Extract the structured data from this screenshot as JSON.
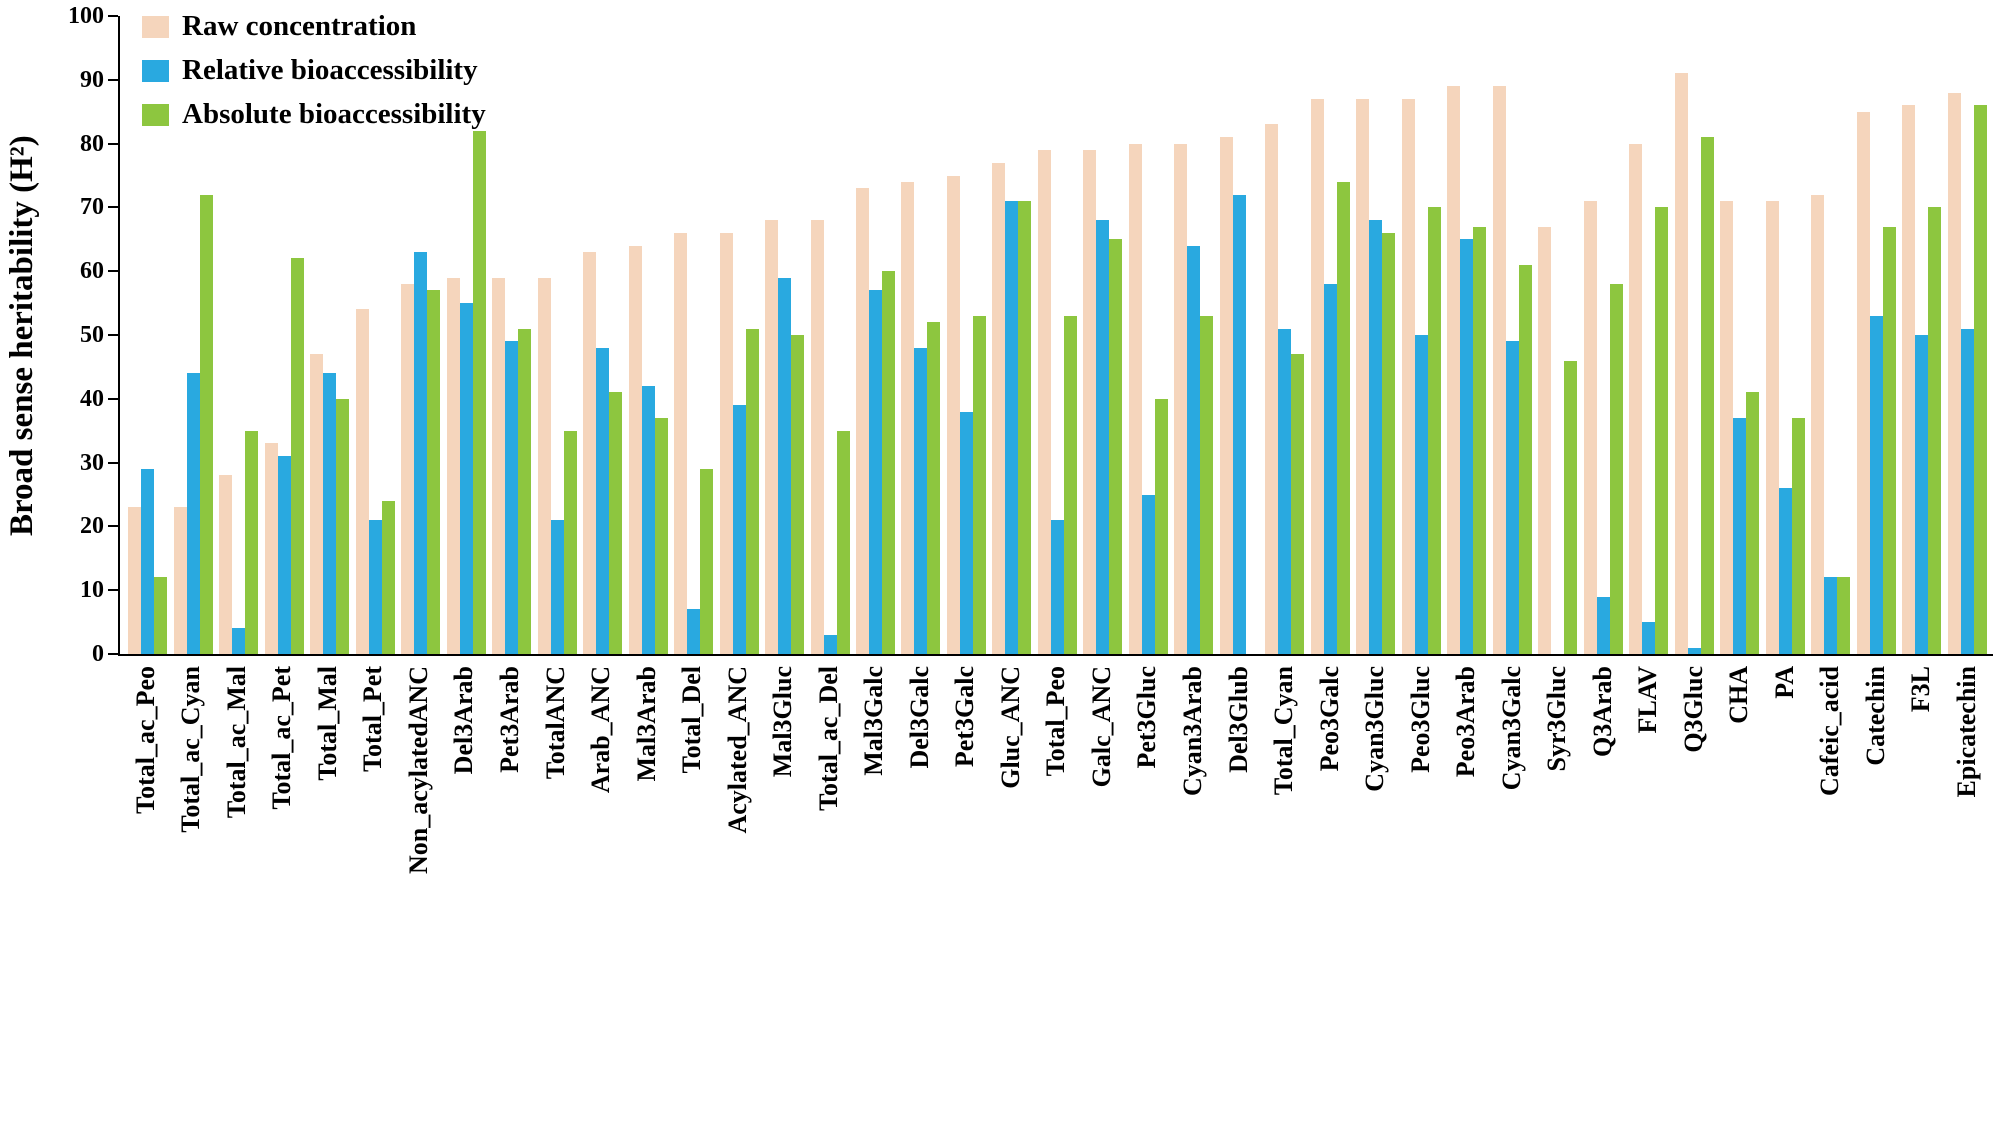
{
  "chart_data": {
    "type": "bar",
    "title": "",
    "xlabel": "",
    "ylabel": "Broad sense heritability (H²)",
    "ylim": [
      0,
      100
    ],
    "ytick_step": 10,
    "grid": false,
    "legend_position": "top-left",
    "categories": [
      "Total_ac_Peo",
      "Total_ac_Cyan",
      "Total_ac_Mal",
      "Total_ac_Pet",
      "Total_Mal",
      "Total_Pet",
      "Non_acylatedANC",
      "Del3Arab",
      "Pet3Arab",
      "TotalANC",
      "Arab_ANC",
      "Mal3Arab",
      "Total_Del",
      "Acylated_ANC",
      "Mal3Gluc",
      "Total_ac_Del",
      "Mal3Galc",
      "Del3Galc",
      "Pet3Galc",
      "Gluc_ANC",
      "Total_Peo",
      "Galc_ANC",
      "Pet3Gluc",
      "Cyan3Arab",
      "Del3Glub",
      "Total_Cyan",
      "Peo3Galc",
      "Cyan3Gluc",
      "Peo3Gluc",
      "Peo3Arab",
      "Cyan3Galc",
      "Syr3Gluc",
      "Q3Arab",
      "FLAV",
      "Q3Gluc",
      "CHA",
      "PA",
      "Cafeic_acid",
      "Catechin",
      "F3L",
      "Epicatechin"
    ],
    "series": [
      {
        "key": "raw-concentration",
        "name": "Raw concentration",
        "color": "#F5D5BC",
        "values": [
          23,
          23,
          28,
          33,
          47,
          54,
          58,
          59,
          59,
          59,
          63,
          64,
          66,
          66,
          68,
          68,
          73,
          74,
          75,
          77,
          79,
          79,
          80,
          80,
          81,
          83,
          87,
          87,
          87,
          89,
          89,
          67,
          71,
          80,
          91,
          71,
          71,
          72,
          85,
          86,
          88
        ]
      },
      {
        "key": "relative-bioaccessibility",
        "name": "Relative bioaccessibility",
        "color": "#29A9E0",
        "values": [
          29,
          44,
          4,
          31,
          44,
          21,
          63,
          55,
          49,
          21,
          48,
          42,
          7,
          39,
          59,
          3,
          57,
          48,
          38,
          71,
          21,
          68,
          25,
          64,
          72,
          51,
          58,
          68,
          50,
          65,
          49,
          0,
          9,
          5,
          1,
          37,
          26,
          12,
          53,
          50,
          51
        ]
      },
      {
        "key": "absolute-bioaccessibility",
        "name": "Absolute bioaccessibility",
        "color": "#8DC63F",
        "values": [
          12,
          72,
          35,
          62,
          40,
          24,
          57,
          82,
          51,
          35,
          41,
          37,
          29,
          51,
          50,
          35,
          60,
          52,
          53,
          71,
          53,
          65,
          40,
          53,
          0,
          47,
          74,
          66,
          70,
          67,
          61,
          46,
          58,
          70,
          81,
          41,
          37,
          12,
          67,
          70,
          86
        ]
      }
    ]
  }
}
